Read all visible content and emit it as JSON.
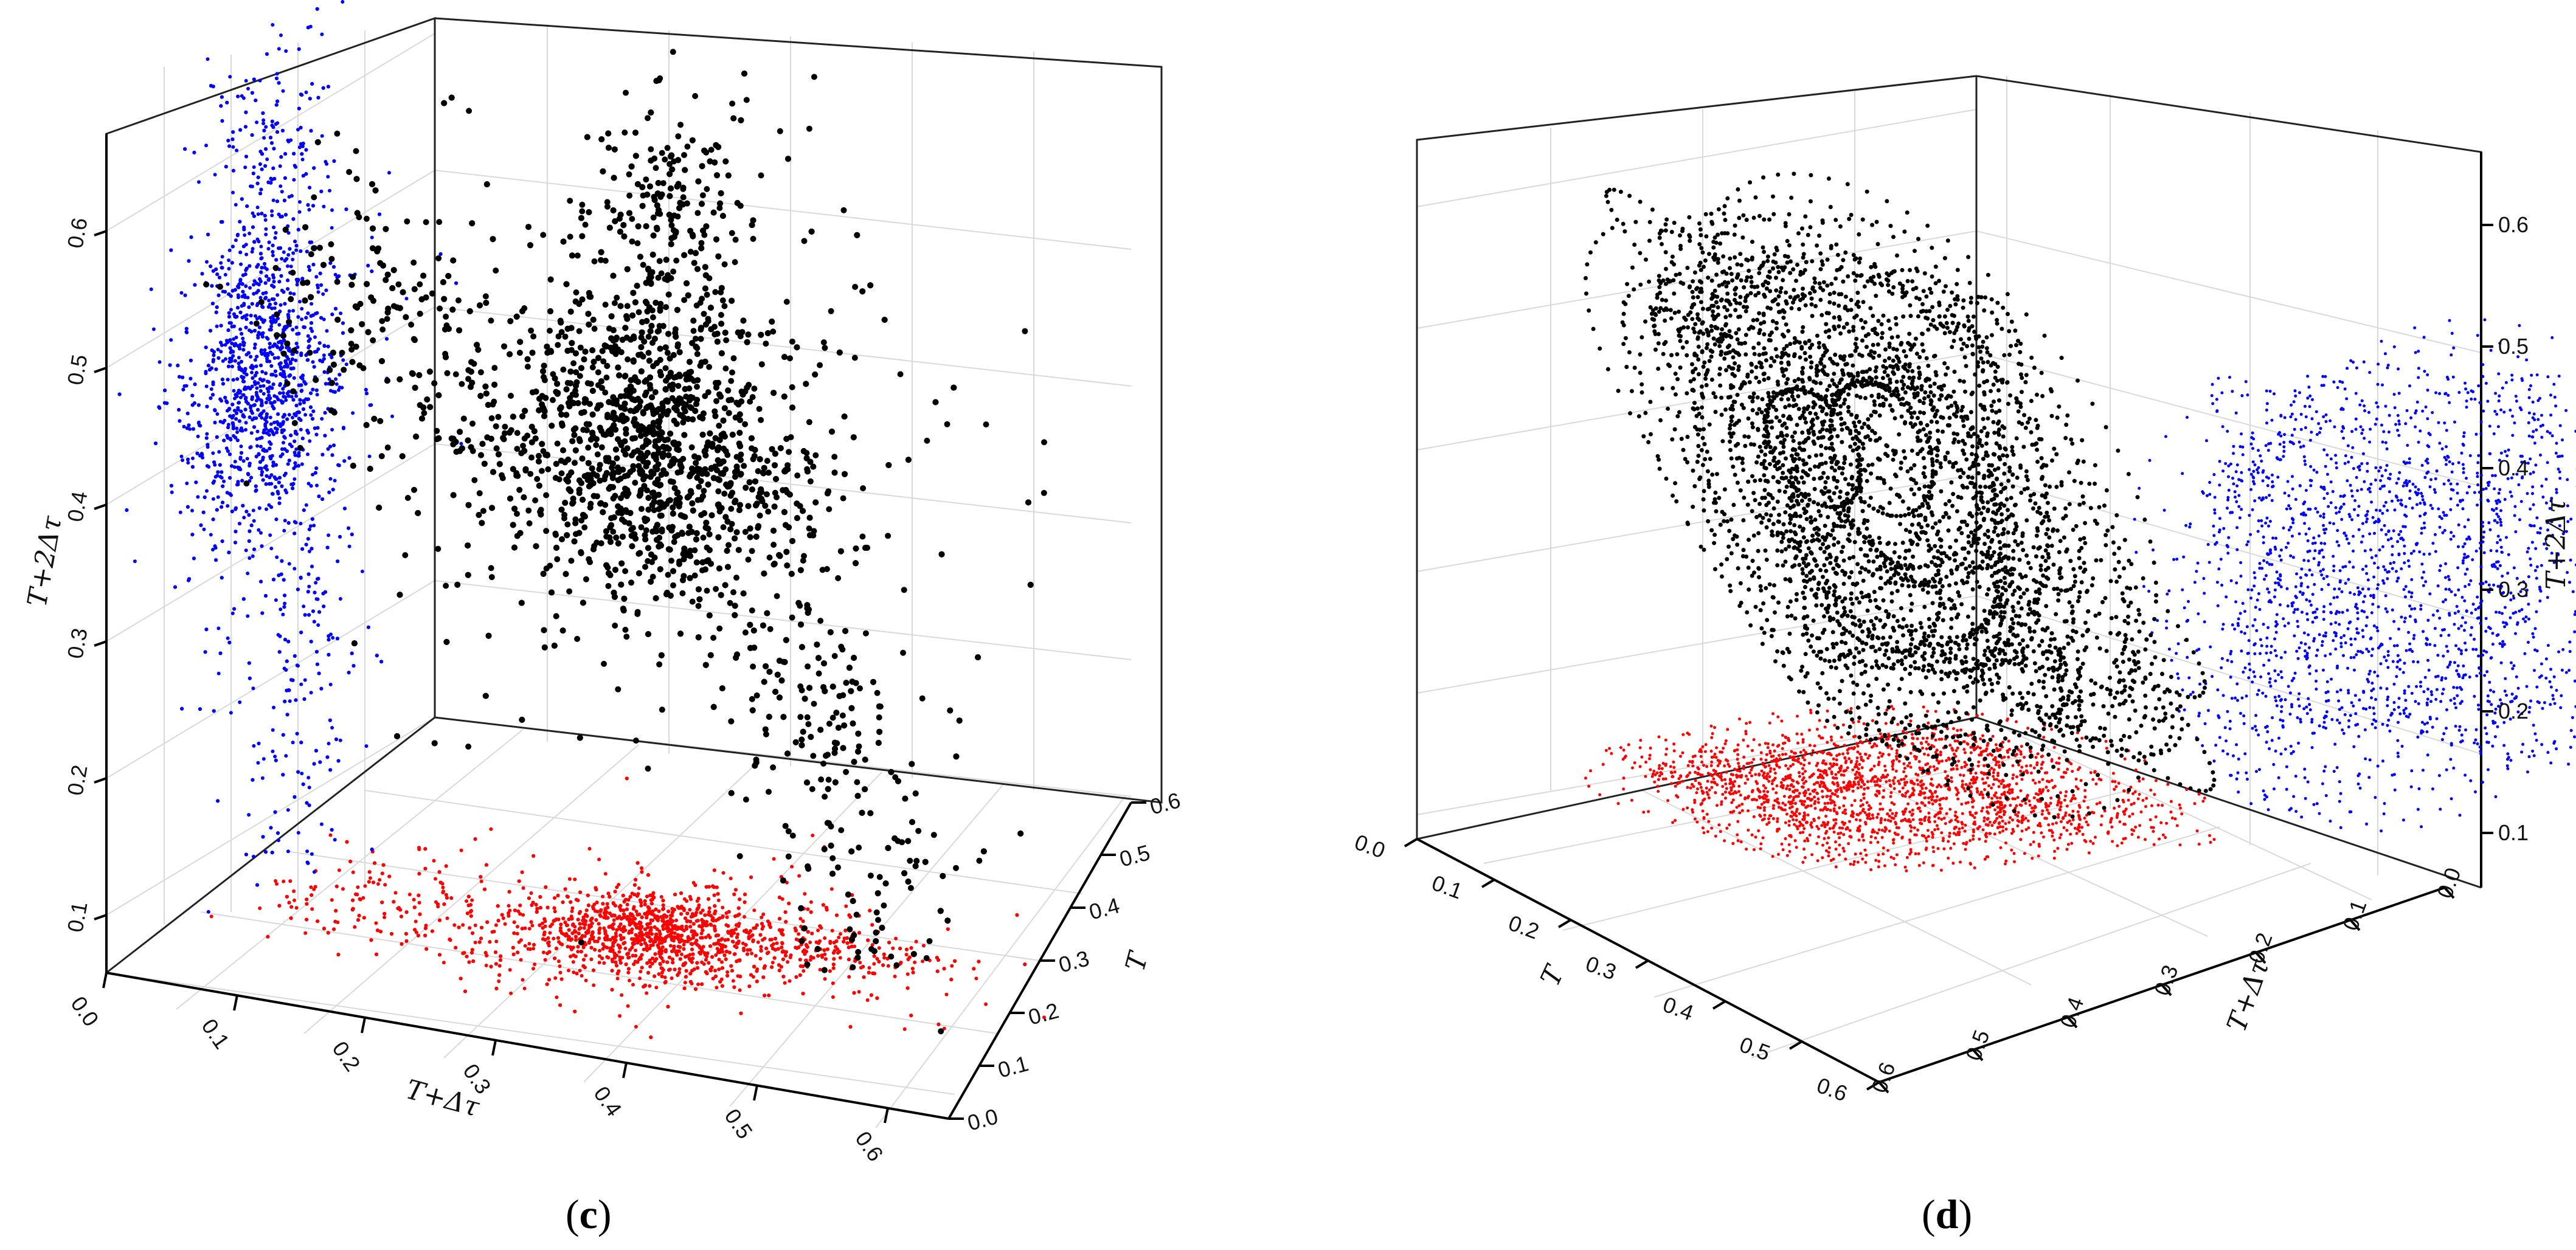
{
  "colors": {
    "main_series": "#000000",
    "projection_xy": "#ff0000",
    "projection_side": "#0000ff"
  },
  "chart_data": [
    {
      "type": "scatter",
      "panel_label": "c",
      "caption_open": "(",
      "caption_close": ")",
      "projection": "3d",
      "grid": true,
      "axes": {
        "x": {
          "label": "T+Δτ",
          "range": [
            0.0,
            0.65
          ],
          "ticks": [
            "0.0",
            "0.1",
            "0.2",
            "0.3",
            "0.4",
            "0.5",
            "0.6"
          ]
        },
        "y": {
          "label": "T",
          "range": [
            0.0,
            0.6
          ],
          "ticks": [
            "0.0",
            "0.1",
            "0.2",
            "0.3",
            "0.4",
            "0.5",
            "0.6"
          ]
        },
        "z": {
          "label": "T+2Δτ",
          "range": [
            0.05,
            0.62
          ],
          "ticks": [
            "0.1",
            "0.2",
            "0.3",
            "0.4",
            "0.5",
            "0.6"
          ]
        }
      },
      "series": [
        {
          "role": "3d-points",
          "color": "#000000",
          "points": 4200,
          "center": [
            0.32,
            0.28,
            0.4
          ],
          "spread": [
            0.11,
            0.1,
            0.1
          ]
        },
        {
          "role": "projection-xy",
          "color": "#ff0000",
          "points": 3000
        },
        {
          "role": "projection-side",
          "color": "#0000ff",
          "points": 3000
        }
      ]
    },
    {
      "type": "line",
      "panel_label": "d",
      "caption_open": "(",
      "caption_close": ")",
      "projection": "3d",
      "grid": true,
      "axes": {
        "x": {
          "label": "T",
          "range": [
            0.0,
            0.65
          ],
          "ticks": [
            "0.0",
            "0.1",
            "0.2",
            "0.3",
            "0.4",
            "0.5",
            "0.6"
          ]
        },
        "y": {
          "label": "T+Δτ",
          "range": [
            0.0,
            0.65
          ],
          "ticks": [
            "0.0",
            "0.1",
            "0.2",
            "0.3",
            "0.4",
            "0.5",
            "0.6"
          ]
        },
        "z": {
          "label": "T+2Δτ",
          "range": [
            0.05,
            0.62
          ],
          "ticks": [
            "0.1",
            "0.2",
            "0.3",
            "0.4",
            "0.5",
            "0.6"
          ]
        }
      },
      "series": [
        {
          "role": "3d-trajectory",
          "color": "#000000",
          "loops": 60,
          "center": [
            0.3,
            0.3,
            0.35
          ]
        },
        {
          "role": "projection-xy",
          "color": "#ff0000",
          "loops": 60
        },
        {
          "role": "projection-side",
          "color": "#0000ff",
          "loops": 60
        }
      ]
    }
  ]
}
